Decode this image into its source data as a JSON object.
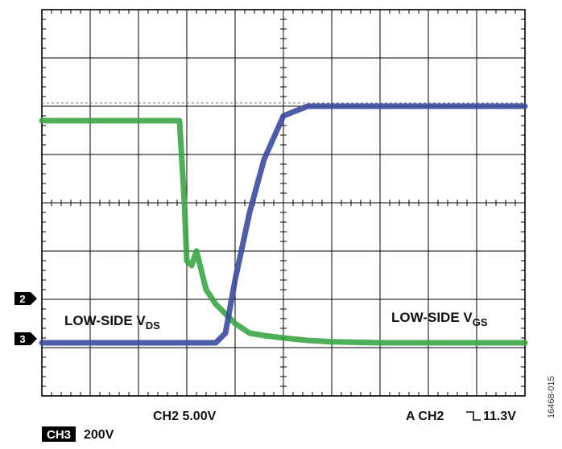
{
  "chart_data": {
    "type": "line",
    "title": "",
    "xlabel": "",
    "ylabel": "",
    "grid": true,
    "x_divisions": 10,
    "y_divisions": 8,
    "x": [
      0.0,
      0.5,
      1.0,
      1.5,
      2.0,
      2.5,
      2.85,
      2.95,
      3.0,
      3.1,
      3.2,
      3.3,
      3.4,
      3.6,
      3.8,
      4.0,
      4.3,
      4.6,
      5.0,
      5.5,
      6.0,
      7.0,
      8.0,
      9.0,
      10.0
    ],
    "series": [
      {
        "name": "LOW-SIDE VDS",
        "color": "#3aa646",
        "values": [
          5.7,
          5.7,
          5.7,
          5.7,
          5.7,
          5.7,
          5.7,
          4.0,
          2.8,
          2.7,
          3.0,
          2.6,
          2.2,
          1.9,
          1.7,
          1.5,
          1.3,
          1.25,
          1.2,
          1.15,
          1.12,
          1.1,
          1.1,
          1.1,
          1.1
        ]
      },
      {
        "name": "LOW-SIDE VGS",
        "color": "#3b4ba0",
        "values": [
          1.1,
          1.1,
          1.1,
          1.1,
          1.1,
          1.1,
          1.1,
          1.1,
          1.1,
          1.1,
          1.1,
          1.1,
          1.1,
          1.1,
          1.3,
          2.4,
          3.8,
          4.9,
          5.8,
          6.0,
          6.0,
          6.0,
          6.0,
          6.0,
          6.0
        ]
      }
    ],
    "trigger_level_y": 6.0,
    "channel_markers": [
      {
        "label": "2",
        "y": 2.0
      },
      {
        "label": "3",
        "y": 1.1
      }
    ],
    "annotations": {
      "vds_main": "LOW-SIDE V",
      "vds_sub": "DS",
      "vgs_main": "LOW-SIDE V",
      "vgs_sub": "GS"
    },
    "readouts": {
      "ch2_scale": "CH2 5.00V",
      "trigger": "A  CH2",
      "trigger_level": "11.3V",
      "ch3_badge": "CH3",
      "ch3_scale": "200V",
      "figure_id": "16468-015"
    },
    "colors": {
      "vds": "#3aa646",
      "vgs": "#3b4ba0",
      "grid": "#000000",
      "marker_bg": "#000000"
    }
  }
}
